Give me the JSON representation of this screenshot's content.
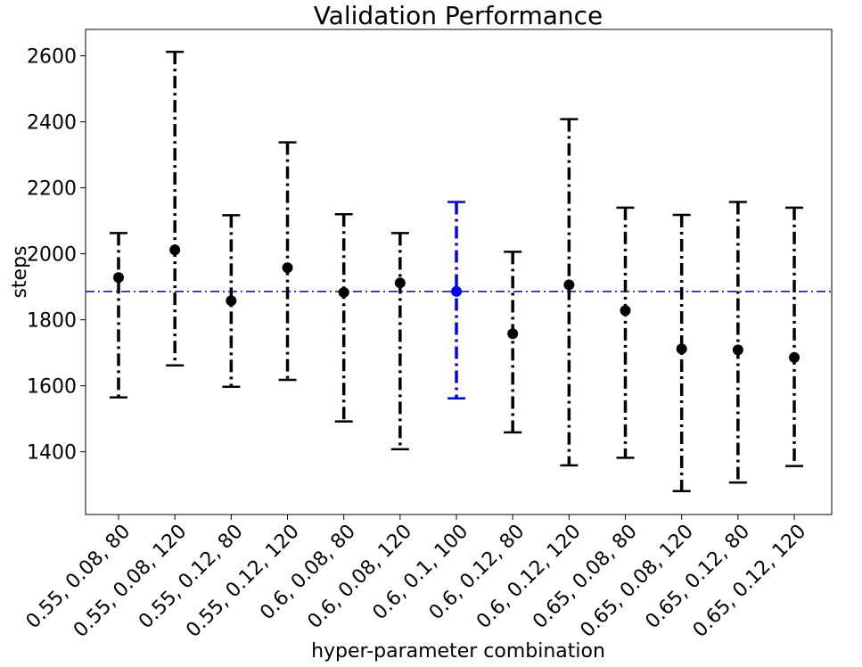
{
  "chart_data": {
    "type": "scatter",
    "title": "Validation Performance",
    "xlabel": "hyper-parameter combination",
    "ylabel": "steps",
    "ylim": [
      1210,
      2680
    ],
    "yticks": [
      1400,
      1600,
      1800,
      2000,
      2200,
      2400,
      2600
    ],
    "categories": [
      "0.55, 0.08, 80",
      "0.55, 0.08, 120",
      "0.55, 0.12, 80",
      "0.55, 0.12, 120",
      "0.6, 0.08, 80",
      "0.6, 0.08, 120",
      "0.6, 0.1, 100",
      "0.6, 0.12, 80",
      "0.6, 0.12, 120",
      "0.65, 0.08, 80",
      "0.65, 0.08, 120",
      "0.65, 0.12, 80",
      "0.65, 0.12, 120"
    ],
    "means": [
      1928,
      2012,
      1858,
      1958,
      1883,
      1912,
      1886,
      1758,
      1906,
      1828,
      1712,
      1709,
      1686
    ],
    "lower": [
      1565,
      1662,
      1597,
      1618,
      1492,
      1408,
      1562,
      1459,
      1359,
      1382,
      1281,
      1307,
      1357
    ],
    "upper": [
      2063,
      2612,
      2117,
      2338,
      2120,
      2063,
      2157,
      2006,
      2408,
      2140,
      2118,
      2157,
      2140
    ],
    "highlight_index": 6,
    "reference_line": 1886,
    "colors": {
      "default": "#000000",
      "highlight": "#0000ee",
      "reference": "#0000cc"
    },
    "grid": false
  }
}
